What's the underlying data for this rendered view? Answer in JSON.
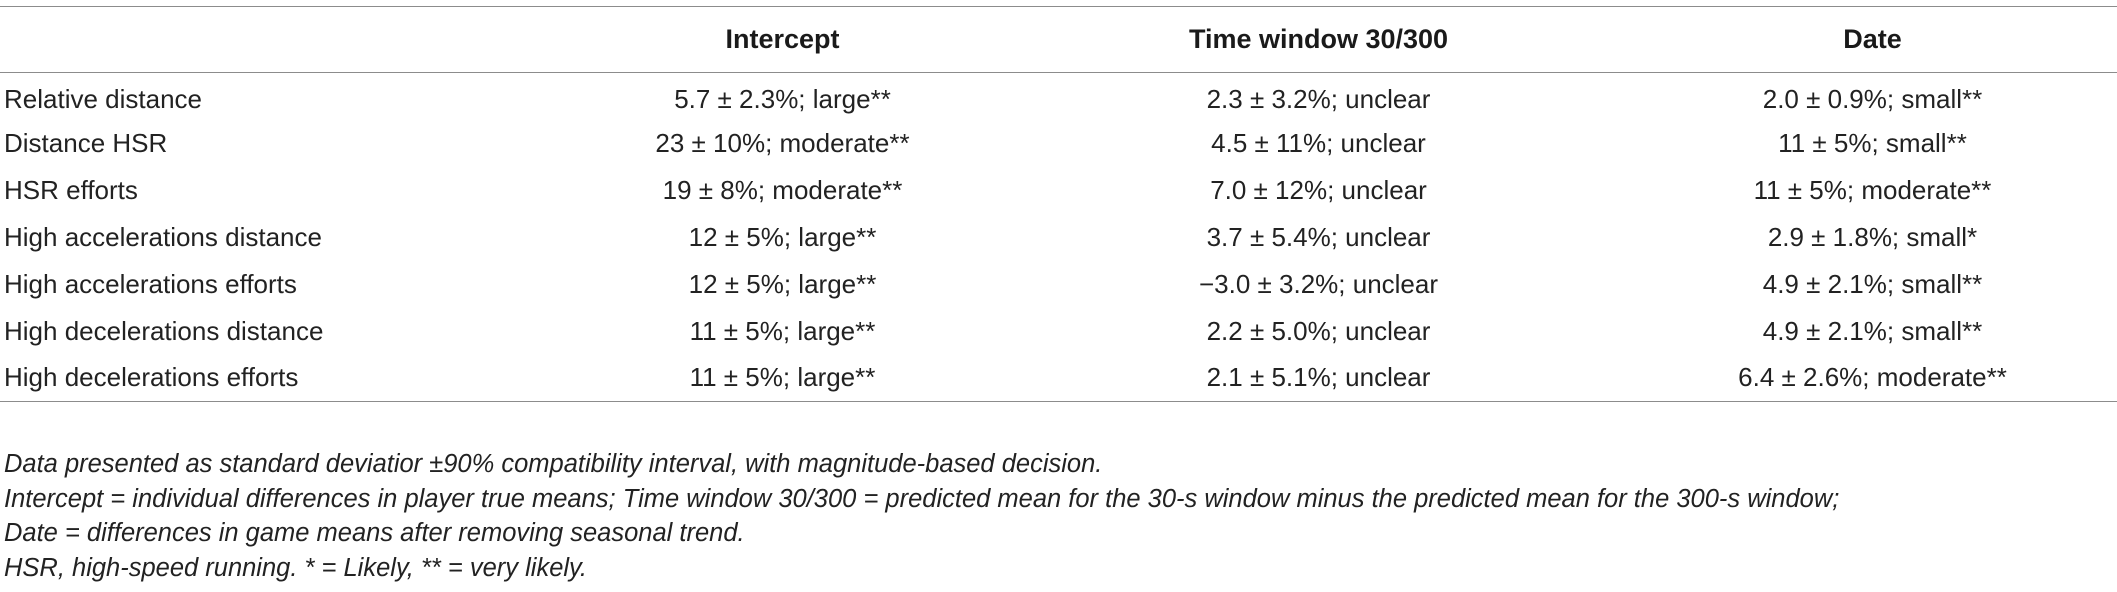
{
  "table": {
    "headers": [
      "",
      "Intercept",
      "Time window 30/300",
      "Date"
    ],
    "rows": [
      {
        "label": "Relative distance",
        "intercept": "5.7 ± 2.3%; large**",
        "time_window": "2.3 ± 3.2%; unclear",
        "date": "2.0 ± 0.9%; small**"
      },
      {
        "label": "Distance HSR",
        "intercept": "23 ± 10%; moderate**",
        "time_window": "4.5 ± 11%; unclear",
        "date": "11 ± 5%; small**"
      },
      {
        "label": "HSR efforts",
        "intercept": "19 ± 8%; moderate**",
        "time_window": "7.0 ± 12%; unclear",
        "date": "11 ± 5%; moderate**"
      },
      {
        "label": "High accelerations distance",
        "intercept": "12 ± 5%; large**",
        "time_window": "3.7 ± 5.4%; unclear",
        "date": "2.9 ± 1.8%; small*"
      },
      {
        "label": "High accelerations efforts",
        "intercept": "12 ± 5%; large**",
        "time_window": "−3.0 ± 3.2%; unclear",
        "date": "4.9 ± 2.1%; small**"
      },
      {
        "label": "High decelerations distance",
        "intercept": "11 ± 5%; large**",
        "time_window": "2.2 ± 5.0%; unclear",
        "date": "4.9 ± 2.1%; small**"
      },
      {
        "label": "High decelerations efforts",
        "intercept": "11 ± 5%; large**",
        "time_window": "2.1 ± 5.1%; unclear",
        "date": "6.4 ± 2.6%; moderate**"
      }
    ]
  },
  "notes": [
    "Data presented as standard deviatior ±90% compatibility interval, with magnitude-based decision.",
    "Intercept = individual differences in player true means; Time window 30/300 = predicted mean for the 30-s window minus the predicted mean for the 300-s window;",
    "Date = differences in game means after removing seasonal trend.",
    "HSR, high-speed running. * = Likely, ** = very likely."
  ]
}
